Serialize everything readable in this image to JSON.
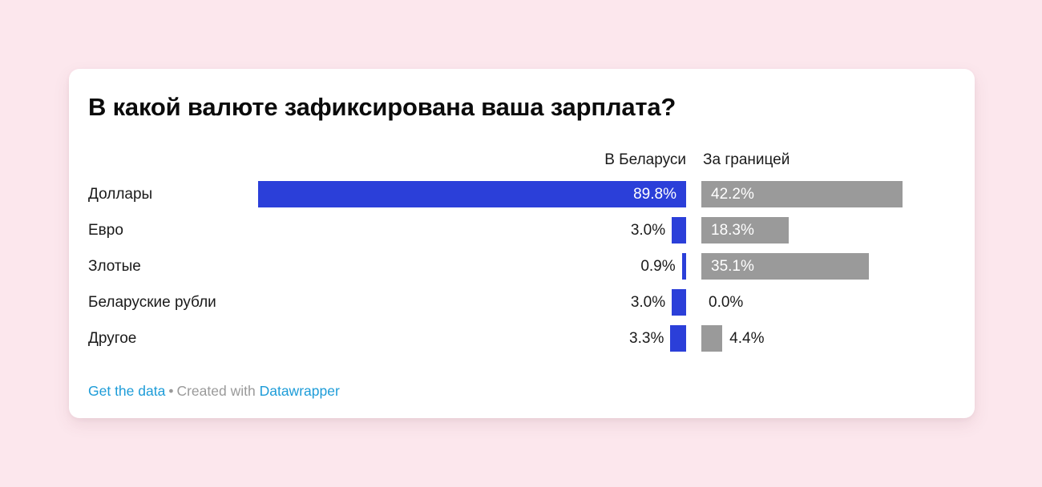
{
  "title": "В какой валюте зафиксирована ваша зарплата?",
  "chart_data": {
    "type": "bar",
    "orientation": "horizontal",
    "title": "В какой валюте зафиксирована ваша зарплата?",
    "categories": [
      "Доллары",
      "Евро",
      "Злотые",
      "Беларуские рубли",
      "Другое"
    ],
    "series": [
      {
        "name": "В Беларуси",
        "color": "#2b3fd9",
        "values": [
          89.8,
          3.0,
          0.9,
          3.0,
          3.3
        ]
      },
      {
        "name": "За границей",
        "color": "#9a9a9a",
        "values": [
          42.2,
          18.3,
          35.1,
          0.0,
          4.4
        ]
      }
    ],
    "value_suffix": "%",
    "value_labels": true,
    "xlim": [
      0,
      100
    ],
    "grid": false,
    "legend_position": "column-headers"
  },
  "colors": {
    "page_background": "#fce7ed",
    "card_background": "#ffffff",
    "bar_belarus": "#2b3fd9",
    "bar_abroad": "#9a9a9a",
    "text": "#1a1a1a",
    "footer_text": "#9a9a9a",
    "link": "#1d9cd8"
  },
  "footer": {
    "get_data_label": "Get the data",
    "separator": "•",
    "created_with_label": "Created with",
    "datawrapper_label": "Datawrapper"
  }
}
